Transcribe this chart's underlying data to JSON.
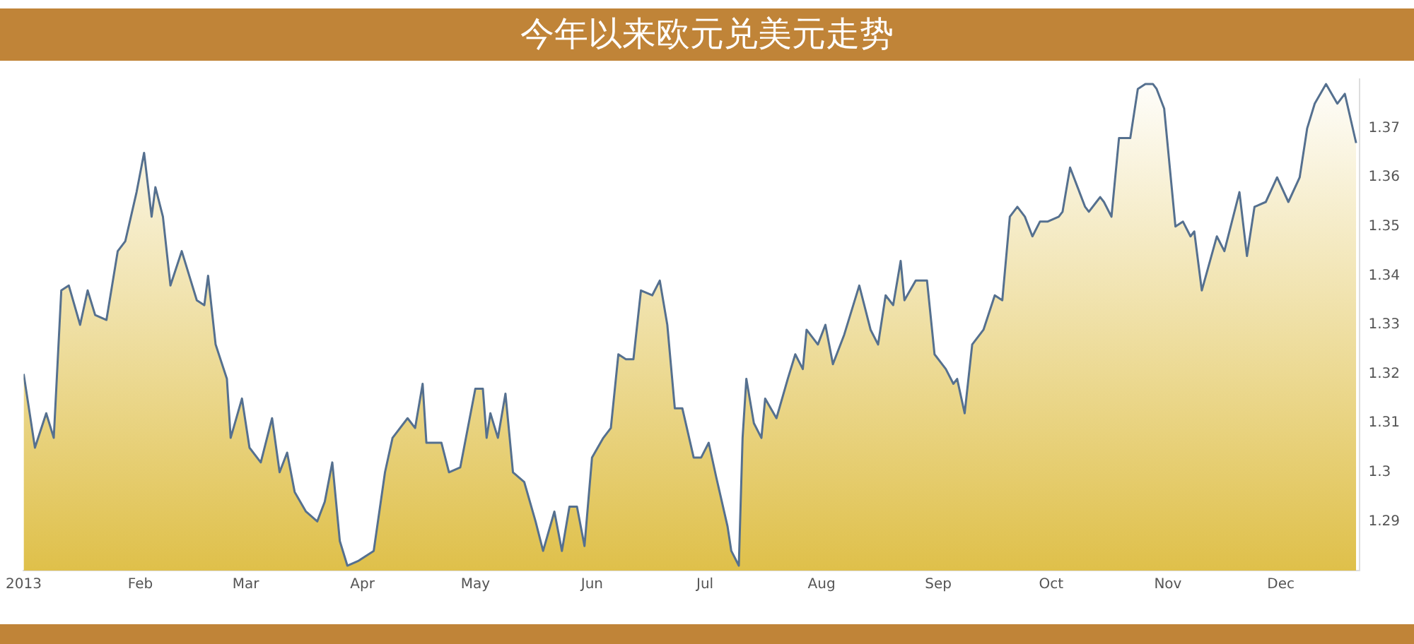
{
  "chart_data": {
    "type": "area",
    "title": "今年以来欧元兑美元走势",
    "x": [
      "2013-01-01",
      "2013-01-04",
      "2013-01-07",
      "2013-01-09",
      "2013-01-11",
      "2013-01-13",
      "2013-01-16",
      "2013-01-18",
      "2013-01-20",
      "2013-01-23",
      "2013-01-26",
      "2013-01-28",
      "2013-01-31",
      "2013-02-02",
      "2013-02-04",
      "2013-02-05",
      "2013-02-07",
      "2013-02-09",
      "2013-02-12",
      "2013-02-16",
      "2013-02-18",
      "2013-02-19",
      "2013-02-21",
      "2013-02-24",
      "2013-02-25",
      "2013-02-28",
      "2013-03-02",
      "2013-03-05",
      "2013-03-08",
      "2013-03-10",
      "2013-03-12",
      "2013-03-14",
      "2013-03-17",
      "2013-03-20",
      "2013-03-22",
      "2013-03-24",
      "2013-03-26",
      "2013-03-28",
      "2013-03-31",
      "2013-04-04",
      "2013-04-07",
      "2013-04-09",
      "2013-04-13",
      "2013-04-15",
      "2013-04-17",
      "2013-04-18",
      "2013-04-22",
      "2013-04-24",
      "2013-04-27",
      "2013-05-01",
      "2013-05-03",
      "2013-05-04",
      "2013-05-05",
      "2013-05-07",
      "2013-05-09",
      "2013-05-11",
      "2013-05-14",
      "2013-05-17",
      "2013-05-19",
      "2013-05-22",
      "2013-05-24",
      "2013-05-26",
      "2013-05-28",
      "2013-05-30",
      "2013-06-01",
      "2013-06-04",
      "2013-06-06",
      "2013-06-08",
      "2013-06-10",
      "2013-06-12",
      "2013-06-14",
      "2013-06-17",
      "2013-06-19",
      "2013-06-21",
      "2013-06-23",
      "2013-06-25",
      "2013-06-28",
      "2013-06-30",
      "2013-07-02",
      "2013-07-04",
      "2013-07-07",
      "2013-07-08",
      "2013-07-10",
      "2013-07-11",
      "2013-07-12",
      "2013-07-14",
      "2013-07-16",
      "2013-07-17",
      "2013-07-20",
      "2013-07-23",
      "2013-07-25",
      "2013-07-27",
      "2013-07-28",
      "2013-07-31",
      "2013-08-02",
      "2013-08-04",
      "2013-08-07",
      "2013-08-11",
      "2013-08-14",
      "2013-08-16",
      "2013-08-18",
      "2013-08-20",
      "2013-08-22",
      "2013-08-23",
      "2013-08-26",
      "2013-08-29",
      "2013-08-31",
      "2013-09-03",
      "2013-09-05",
      "2013-09-06",
      "2013-09-08",
      "2013-09-10",
      "2013-09-13",
      "2013-09-16",
      "2013-09-18",
      "2013-09-20",
      "2013-09-22",
      "2013-09-24",
      "2013-09-26",
      "2013-09-28",
      "2013-09-30",
      "2013-10-03",
      "2013-10-04",
      "2013-10-06",
      "2013-10-08",
      "2013-10-10",
      "2013-10-11",
      "2013-10-13",
      "2013-10-14",
      "2013-10-15",
      "2013-10-17",
      "2013-10-19",
      "2013-10-21",
      "2013-10-22",
      "2013-10-24",
      "2013-10-26",
      "2013-10-28",
      "2013-10-29",
      "2013-10-31",
      "2013-11-03",
      "2013-11-05",
      "2013-11-07",
      "2013-11-08",
      "2013-11-10",
      "2013-11-14",
      "2013-11-16",
      "2013-11-18",
      "2013-11-20",
      "2013-11-22",
      "2013-11-24",
      "2013-11-27",
      "2013-11-30",
      "2013-12-03",
      "2013-12-06",
      "2013-12-08",
      "2013-12-10",
      "2013-12-13",
      "2013-12-16",
      "2013-12-18",
      "2013-12-21"
    ],
    "series": [
      {
        "color": "#dfc04a",
        "values": [
          1.32,
          1.305,
          1.312,
          1.307,
          1.337,
          1.338,
          1.33,
          1.337,
          1.332,
          1.331,
          1.345,
          1.347,
          1.357,
          1.365,
          1.352,
          1.358,
          1.352,
          1.338,
          1.345,
          1.335,
          1.334,
          1.34,
          1.326,
          1.319,
          1.307,
          1.315,
          1.305,
          1.302,
          1.311,
          1.3,
          1.304,
          1.296,
          1.292,
          1.29,
          1.294,
          1.302,
          1.286,
          1.281,
          1.282,
          1.284,
          1.3,
          1.307,
          1.311,
          1.309,
          1.318,
          1.306,
          1.306,
          1.3,
          1.301,
          1.317,
          1.317,
          1.307,
          1.312,
          1.307,
          1.316,
          1.3,
          1.298,
          1.29,
          1.284,
          1.292,
          1.284,
          1.293,
          1.293,
          1.285,
          1.303,
          1.307,
          1.309,
          1.324,
          1.323,
          1.323,
          1.337,
          1.336,
          1.339,
          1.33,
          1.313,
          1.313,
          1.303,
          1.303,
          1.306,
          1.299,
          1.289,
          1.284,
          1.281,
          1.307,
          1.319,
          1.31,
          1.307,
          1.315,
          1.311,
          1.319,
          1.324,
          1.321,
          1.329,
          1.326,
          1.33,
          1.322,
          1.328,
          1.338,
          1.329,
          1.326,
          1.336,
          1.334,
          1.343,
          1.335,
          1.339,
          1.339,
          1.324,
          1.321,
          1.318,
          1.319,
          1.312,
          1.326,
          1.329,
          1.336,
          1.335,
          1.352,
          1.354,
          1.352,
          1.348,
          1.351,
          1.351,
          1.352,
          1.353,
          1.362,
          1.358,
          1.354,
          1.353,
          1.355,
          1.356,
          1.355,
          1.352,
          1.368,
          1.368,
          1.368,
          1.378,
          1.379,
          1.379,
          1.378,
          1.374,
          1.35,
          1.351,
          1.348,
          1.349,
          1.337,
          1.348,
          1.345,
          1.351,
          1.357,
          1.344,
          1.354,
          1.355,
          1.36,
          1.355,
          1.36,
          1.37,
          1.375,
          1.379,
          1.375,
          1.377,
          1.367
        ]
      }
    ],
    "xlim": [
      "2013-01-01",
      "2013-12-22"
    ],
    "xticks": [
      {
        "value": "2013-01-01",
        "label": "2013"
      },
      {
        "value": "2013-02-01",
        "label": "Feb"
      },
      {
        "value": "2013-03-01",
        "label": "Mar"
      },
      {
        "value": "2013-04-01",
        "label": "Apr"
      },
      {
        "value": "2013-05-01",
        "label": "May"
      },
      {
        "value": "2013-06-01",
        "label": "Jun"
      },
      {
        "value": "2013-07-01",
        "label": "Jul"
      },
      {
        "value": "2013-08-01",
        "label": "Aug"
      },
      {
        "value": "2013-09-01",
        "label": "Sep"
      },
      {
        "value": "2013-10-01",
        "label": "Oct"
      },
      {
        "value": "2013-11-01",
        "label": "Nov"
      },
      {
        "value": "2013-12-01",
        "label": "Dec"
      }
    ],
    "ylim": [
      1.28,
      1.38
    ],
    "yticks": [
      1.29,
      1.3,
      1.31,
      1.32,
      1.33,
      1.34,
      1.35,
      1.36,
      1.37
    ],
    "grid": false,
    "legend": false
  }
}
